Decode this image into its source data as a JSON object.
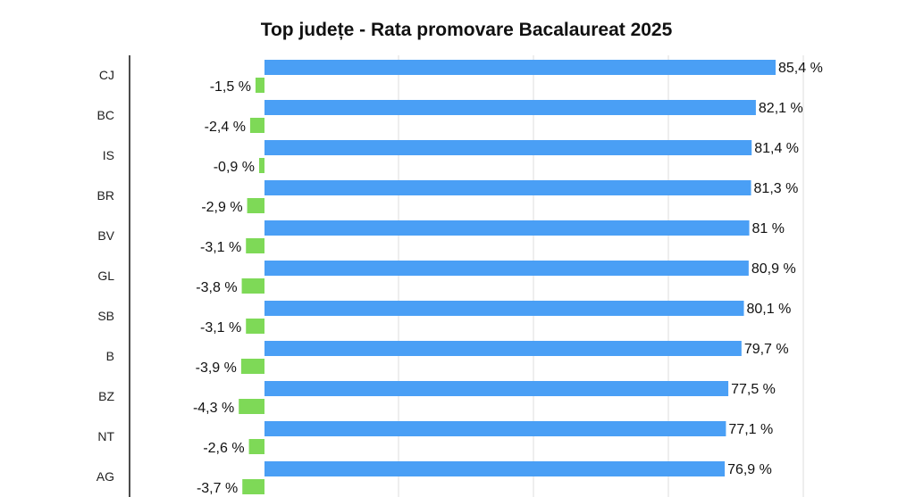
{
  "chart_data": {
    "type": "bar",
    "orientation": "horizontal",
    "title": "Top județe - Rata promovare Bacalaureat 2025",
    "categories": [
      "CJ",
      "BC",
      "IS",
      "BR",
      "BV",
      "GL",
      "SB",
      "B",
      "BZ",
      "NT",
      "AG"
    ],
    "series": [
      {
        "values": [
          85.4,
          82.1,
          81.4,
          81.3,
          81,
          80.9,
          80.1,
          79.7,
          77.5,
          77.1,
          76.9
        ],
        "labels": [
          "85,4 %",
          "82,1 %",
          "81,4 %",
          "81,3 %",
          "81 %",
          "80,9 %",
          "80,1 %",
          "79,7 %",
          "77,5 %",
          "77,1 %",
          "76,9 %"
        ],
        "color": "#4a9ff5"
      },
      {
        "values": [
          -1.5,
          -2.4,
          -0.9,
          -2.9,
          -3.1,
          -3.8,
          -3.1,
          -3.9,
          -4.3,
          -2.6,
          -3.7
        ],
        "labels": [
          "-1,5 %",
          "-2,4 %",
          "-0,9 %",
          "-2,9 %",
          "-3,1 %",
          "-3,8 %",
          "-3,1 %",
          "-3,9 %",
          "-4,3 %",
          "-2,6 %",
          "-3,7 %"
        ],
        "color": "#7ed957"
      }
    ],
    "grid": true,
    "legend": "none"
  }
}
